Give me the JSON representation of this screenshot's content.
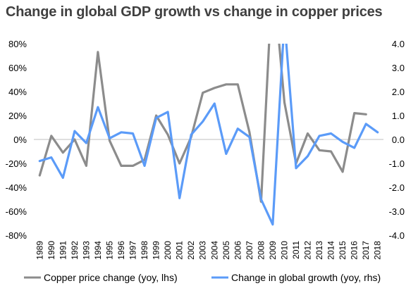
{
  "chart_data": {
    "type": "line",
    "title": "Change in global GDP growth vs change in copper prices",
    "x": [
      "1989",
      "1990",
      "1991",
      "1992",
      "1993",
      "1994",
      "1995",
      "1996",
      "1997",
      "1998",
      "1999",
      "2000",
      "2001",
      "2002",
      "2003",
      "2004",
      "2005",
      "2006",
      "2007",
      "2008",
      "2009",
      "2010",
      "2011",
      "2012",
      "2013",
      "2014",
      "2015",
      "2016",
      "2017",
      "2018"
    ],
    "y_left": {
      "ylim": [
        -80,
        80
      ],
      "ticks": [
        "80%",
        "60%",
        "40%",
        "20%",
        "0%",
        "-20%",
        "-40%",
        "-60%",
        "-80%"
      ]
    },
    "y_right": {
      "ylim": [
        -4,
        4
      ],
      "ticks": [
        "4.0",
        "3.0",
        "2.0",
        "1.0",
        "0.0",
        "-1.0",
        "-2.0",
        "-3.0",
        "-4.0"
      ]
    },
    "series": [
      {
        "name": "Copper price change (yoy, lhs)",
        "axis": "left",
        "color": "#8c8c8c",
        "values": [
          -30,
          3,
          -11,
          0,
          -22,
          73,
          -1,
          -22,
          -22,
          -17,
          20,
          4,
          -20,
          2,
          39,
          43,
          46,
          46,
          6,
          -52,
          140,
          31,
          -20,
          5,
          -9,
          -10,
          -27,
          22,
          21,
          null
        ]
      },
      {
        "name": "Change in global growth (yoy, rhs)",
        "axis": "right",
        "color": "#5b9bf8",
        "values": [
          -0.9,
          -0.75,
          -1.6,
          0.35,
          -0.15,
          1.35,
          0.05,
          0.3,
          0.25,
          -1.1,
          0.9,
          1.15,
          -2.45,
          0.2,
          0.75,
          1.5,
          -0.6,
          0.45,
          0.1,
          -2.5,
          -3.55,
          5.0,
          -1.2,
          -0.7,
          0.15,
          0.25,
          -0.1,
          -0.35,
          0.65,
          0.3
        ]
      }
    ]
  }
}
